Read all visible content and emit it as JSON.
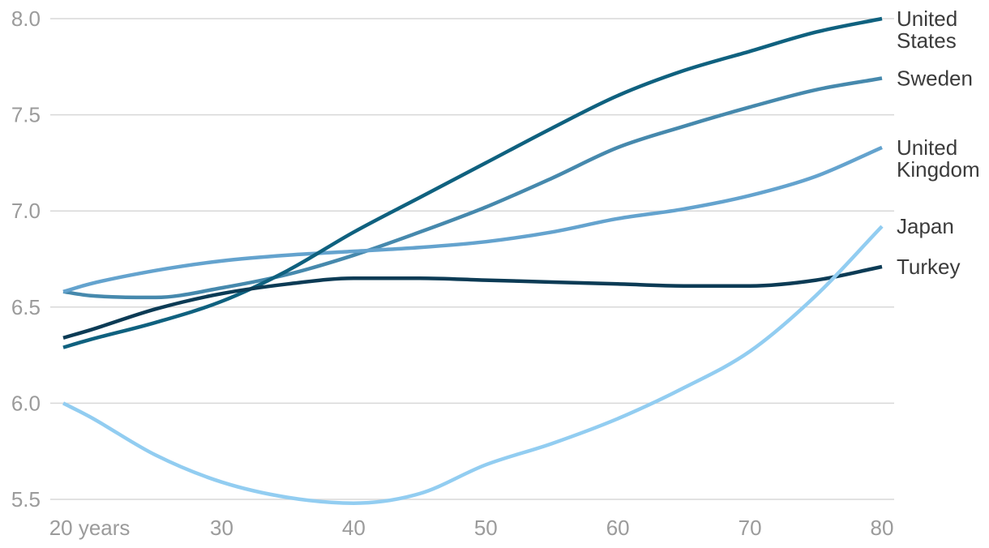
{
  "chart_data": {
    "type": "line",
    "title": "",
    "x_axis": {
      "range": [
        18,
        80
      ],
      "ticks": [
        20,
        30,
        40,
        50,
        60,
        70,
        80
      ],
      "tick_labels": [
        "20 years",
        "30",
        "40",
        "50",
        "60",
        "70",
        "80"
      ]
    },
    "y_axis": {
      "range": [
        5.5,
        8.0
      ],
      "ticks": [
        5.5,
        6.0,
        6.5,
        7.0,
        7.5,
        8.0
      ],
      "tick_labels": [
        "5.5",
        "6.0",
        "6.5",
        "7.0",
        "7.5",
        "8.0"
      ]
    },
    "grid": true,
    "legend_position": "right-end-labels",
    "ages": [
      18,
      20,
      25,
      30,
      35,
      40,
      45,
      50,
      55,
      60,
      65,
      70,
      75,
      80
    ],
    "series": [
      {
        "name": "United States",
        "label_lines": [
          "United",
          "States"
        ],
        "color": "#0f617f",
        "values": [
          6.29,
          6.33,
          6.42,
          6.53,
          6.69,
          6.89,
          7.07,
          7.25,
          7.43,
          7.6,
          7.73,
          7.83,
          7.93,
          8.0
        ]
      },
      {
        "name": "Sweden",
        "label_lines": [
          "Sweden"
        ],
        "color": "#4689ad",
        "values": [
          6.58,
          6.56,
          6.55,
          6.6,
          6.67,
          6.77,
          6.89,
          7.02,
          7.17,
          7.33,
          7.44,
          7.54,
          7.63,
          7.69
        ]
      },
      {
        "name": "United Kingdom",
        "label_lines": [
          "United",
          "Kingdom"
        ],
        "color": "#64a3ce",
        "values": [
          6.58,
          6.62,
          6.69,
          6.74,
          6.77,
          6.79,
          6.81,
          6.84,
          6.89,
          6.96,
          7.01,
          7.08,
          7.18,
          7.33
        ]
      },
      {
        "name": "Japan",
        "label_lines": [
          "Japan"
        ],
        "color": "#92cdf1",
        "values": [
          6.0,
          5.93,
          5.73,
          5.59,
          5.51,
          5.48,
          5.53,
          5.68,
          5.79,
          5.92,
          6.08,
          6.27,
          6.56,
          6.92
        ]
      },
      {
        "name": "Turkey",
        "label_lines": [
          "Turkey"
        ],
        "color": "#0c3b55",
        "values": [
          6.34,
          6.38,
          6.49,
          6.57,
          6.62,
          6.65,
          6.65,
          6.64,
          6.63,
          6.62,
          6.61,
          6.61,
          6.64,
          6.71
        ]
      }
    ],
    "colors": {
      "gridline": "#d8d8d8",
      "tick_text": "#9b9b9b",
      "label_text": "#3b3b3b",
      "background": "#ffffff"
    }
  }
}
